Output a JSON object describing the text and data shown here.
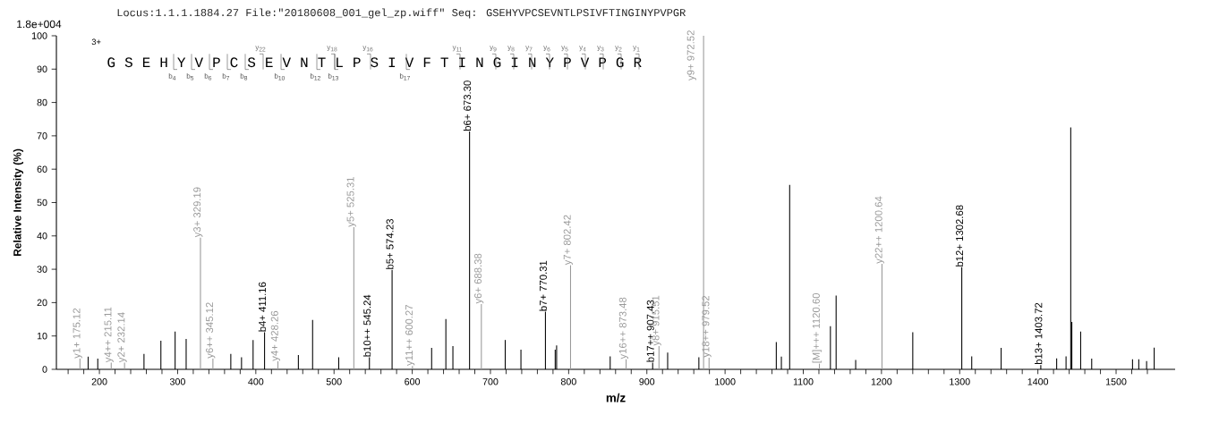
{
  "chart_data": {
    "type": "bar",
    "title": "Locus:1.1.1.1884.27 File:\"20180608_001_gel_zp.wiff\"   Seq: GSEHYVPCSEVNTLPSIVFTINGINYPVPGR",
    "xlabel": "m/z",
    "ylabel": "Relative Intensity (%)",
    "xlim": [
      145,
      1575.5
    ],
    "ylim": [
      0,
      100
    ],
    "xticks": [
      {
        "value": 160,
        "label": null
      },
      {
        "value": 180,
        "label": null
      },
      200,
      {
        "value": 220,
        "label": null
      },
      {
        "value": 240,
        "label": null
      },
      {
        "value": 260,
        "label": null
      },
      {
        "value": 280,
        "label": null
      },
      300,
      {
        "value": 320,
        "label": null
      },
      {
        "value": 340,
        "label": null
      },
      {
        "value": 360,
        "label": null
      },
      {
        "value": 380,
        "label": null
      },
      400,
      {
        "value": 420,
        "label": null
      },
      {
        "value": 440,
        "label": null
      },
      {
        "value": 460,
        "label": null
      },
      {
        "value": 480,
        "label": null
      },
      500,
      {
        "value": 520,
        "label": null
      },
      {
        "value": 540,
        "label": null
      },
      {
        "value": 560,
        "label": null
      },
      {
        "value": 580,
        "label": null
      },
      600,
      {
        "value": 620,
        "label": null
      },
      {
        "value": 640,
        "label": null
      },
      {
        "value": 660,
        "label": null
      },
      {
        "value": 680,
        "label": null
      },
      700,
      {
        "value": 720,
        "label": null
      },
      {
        "value": 740,
        "label": null
      },
      {
        "value": 760,
        "label": null
      },
      {
        "value": 780,
        "label": null
      },
      800,
      {
        "value": 820,
        "label": null
      },
      {
        "value": 840,
        "label": null
      },
      {
        "value": 860,
        "label": null
      },
      {
        "value": 880,
        "label": null
      },
      900,
      {
        "value": 920,
        "label": null
      },
      {
        "value": 940,
        "label": null
      },
      {
        "value": 960,
        "label": null
      },
      {
        "value": 980,
        "label": null
      },
      1000,
      {
        "value": 1020,
        "label": null
      },
      {
        "value": 1040,
        "label": null
      },
      {
        "value": 1060,
        "label": null
      },
      {
        "value": 1080,
        "label": null
      },
      1100,
      {
        "value": 1120,
        "label": null
      },
      {
        "value": 1140,
        "label": null
      },
      {
        "value": 1160,
        "label": null
      },
      {
        "value": 1180,
        "label": null
      },
      1200,
      {
        "value": 1220,
        "label": null
      },
      {
        "value": 1240,
        "label": null
      },
      {
        "value": 1260,
        "label": null
      },
      {
        "value": 1280,
        "label": null
      },
      1300,
      {
        "value": 1320,
        "label": null
      },
      {
        "value": 1340,
        "label": null
      },
      {
        "value": 1360,
        "label": null
      },
      {
        "value": 1380,
        "label": null
      },
      1400,
      {
        "value": 1420,
        "label": null
      },
      {
        "value": 1440,
        "label": null
      },
      {
        "value": 1460,
        "label": null
      },
      {
        "value": 1480,
        "label": null
      },
      1500,
      {
        "value": 1520,
        "label": null
      },
      {
        "value": 1540,
        "label": null
      }
    ],
    "yticks": [
      0,
      10,
      20,
      30,
      40,
      50,
      60,
      70,
      80,
      90,
      100
    ],
    "series": [
      {
        "color": "#000000",
        "x": [
          185.6,
          197.9,
          257,
          278.6,
          296.8,
          310.9,
          368,
          381.7,
          396.5,
          454.4,
          472.6,
          506,
          624.8,
          643,
          652,
          718.9,
          739,
          782.8,
          784.6,
          853.1,
          926.6,
          966.5,
          1065.5,
          1072,
          1082.6,
          1134.7,
          1142,
          1167,
          1240,
          1315.4,
          1353,
          1424,
          1436,
          1442,
          1443.4,
          1454.7,
          1468.8,
          1521,
          1529,
          1539,
          1548.7
        ],
        "values": [
          3.8,
          3.2,
          4.6,
          8.6,
          11.3,
          9.1,
          4.6,
          3.6,
          8.8,
          4.3,
          14.8,
          3.6,
          6.4,
          15.1,
          7,
          8.8,
          5.9,
          5.9,
          7.2,
          3.9,
          5,
          3.6,
          8.2,
          3.8,
          55.3,
          12.9,
          22.1,
          2.8,
          11.1,
          3.9,
          6.4,
          3.3,
          3.9,
          72.5,
          14.2,
          11.3,
          3.2,
          3,
          3,
          2.5,
          6.5
        ]
      },
      {
        "color": "#000000",
        "x": [
          411.16,
          545.24,
          574.23,
          673.3,
          770.31,
          907.43,
          1302.68,
          1403.72
        ],
        "values": [
          11.1,
          3.6,
          29.8,
          71.3,
          17.3,
          2,
          30.6,
          1.3
        ]
      },
      {
        "color": "#999999",
        "x": [
          175.12,
          215.11,
          232.14,
          329.19,
          345.12,
          428.26,
          525.31,
          600.27,
          688.38,
          802.42,
          873.48,
          915.51,
          972.52,
          979.52,
          1120.6,
          1200.64
        ],
        "values": [
          3.2,
          2,
          2,
          39.5,
          3.2,
          2.4,
          42.6,
          1,
          19.6,
          31.2,
          3,
          7,
          100,
          3.5,
          1.7,
          31.6
        ]
      }
    ],
    "annotations": [
      "1.8e+004",
      "3+",
      "G S E H Y V P C S E V N T L P S I V F T I N G I N Y P V P G R",
      "y$_{22}$",
      "y$_{18}$",
      "y$_{16}$",
      "y$_{11}$",
      "y$_{9}$",
      "y$_{8}$",
      "y$_{7}$",
      "y$_{6}$",
      "y$_{5}$",
      "y$_{4}$",
      "y$_{3}$",
      "y$_{2}$",
      "y$_{1}$",
      "b$_{4}$",
      "b$_{5}$",
      "b$_{6}$",
      "b$_{7}$",
      "b$_{8}$",
      "b$_{10}$",
      "b$_{12}$",
      "b$_{13}$",
      "b$_{17}$",
      {
        "text": "y1+ 175.12",
        "x": 175.12,
        "y": 3.2
      },
      {
        "text": "y4++ 215.11",
        "x": 215.11,
        "y": 2
      },
      {
        "text": "y2+ 232.14",
        "x": 232.14,
        "y": 2
      },
      {
        "text": "y3+ 329.19",
        "x": 329.19,
        "y": 39.5
      },
      {
        "text": "y6++ 345.12",
        "x": 345.12,
        "y": 3.2
      },
      {
        "text": "b4+ 411.16",
        "x": 411.16,
        "y": 11.1
      },
      {
        "text": "y4+ 428.26",
        "x": 428.26,
        "y": 2.4
      },
      {
        "text": "y5+ 525.31",
        "x": 525.31,
        "y": 42.6
      },
      {
        "text": "b10++ 545.24",
        "x": 545.24,
        "y": 3.6
      },
      {
        "text": "b5+ 574.23",
        "x": 574.23,
        "y": 29.8
      },
      {
        "text": "y11++ 600.27",
        "x": 600.27,
        "y": 1
      },
      {
        "text": "b6+ 673.30",
        "x": 673.3,
        "y": 71.3
      },
      {
        "text": "y6+ 688.38",
        "x": 688.38,
        "y": 19.6
      },
      {
        "text": "b7+ 770.31",
        "x": 770.31,
        "y": 17.3
      },
      {
        "text": "y7+ 802.42",
        "x": 802.42,
        "y": 31.2
      },
      {
        "text": "y16++ 873.48",
        "x": 873.48,
        "y": 3
      },
      {
        "text": "b17++ 907.43",
        "x": 907.43,
        "y": 2
      },
      {
        "text": "y8+ 915.51",
        "x": 915.51,
        "y": 7
      },
      {
        "text": "y9+ 972.52",
        "x": 972.52,
        "y": 100
      },
      {
        "text": "y18++ 979.52",
        "x": 979.52,
        "y": 3.5
      },
      {
        "text": "[M]+++ 1120.60",
        "x": 1120.6,
        "y": 1.7
      },
      {
        "text": "y22++ 1200.64",
        "x": 1200.64,
        "y": 31.6
      },
      {
        "text": "b12+ 1302.68",
        "x": 1302.68,
        "y": 30.6
      },
      {
        "text": "b13+ 1403.72",
        "x": 1403.72,
        "y": 1.3
      }
    ]
  }
}
